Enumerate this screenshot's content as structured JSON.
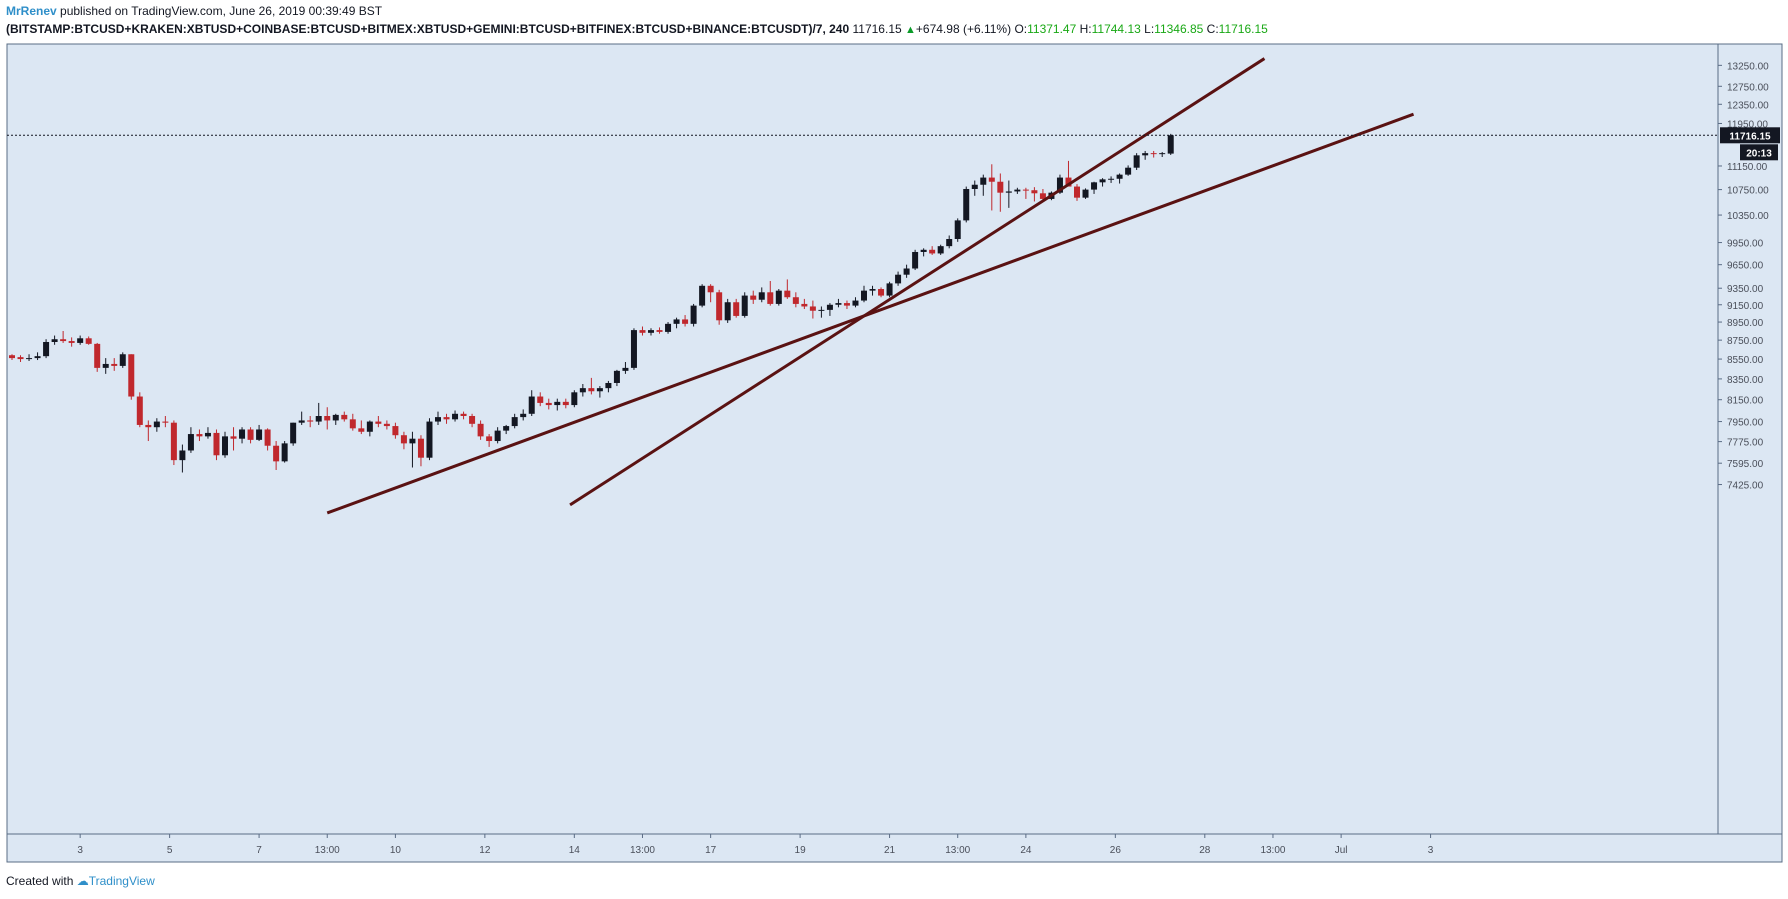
{
  "header": {
    "author": "MrRenev",
    "published_text": "published on TradingView.com, June 26, 2019 00:39:49 BST",
    "symbol": "(BITSTAMP:BTCUSD+KRAKEN:XBTUSD+COINBASE:BTCUSD+BITMEX:XBTUSD+GEMINI:BTCUSD+BITFINEX:BTCUSD+BINANCE:BTCUSDT)/7, 240",
    "last": "11716.15",
    "change": "+674.98 (+6.11%)",
    "o_label": "O:",
    "o": "11371.47",
    "h_label": "H:",
    "h": "11744.13",
    "l_label": "L:",
    "l": "11346.85",
    "c_label": "C:",
    "c": "11716.15"
  },
  "footer": {
    "created_text": "Created with",
    "brand": "TradingView"
  },
  "colors": {
    "background": "#dce7f3",
    "up": "#131722",
    "down": "#c0282d",
    "trendline": "#5a1212"
  },
  "chart_data": {
    "type": "candlestick",
    "y_ticks": [
      "13250.00",
      "12750.00",
      "12350.00",
      "11950.00",
      "11150.00",
      "10750.00",
      "10350.00",
      "9950.00",
      "9650.00",
      "9350.00",
      "9150.00",
      "8950.00",
      "8750.00",
      "8550.00",
      "8350.00",
      "8150.00",
      "7950.00",
      "7775.00",
      "7595.00",
      "7425.00"
    ],
    "x_ticks": [
      "3",
      "5",
      "7",
      "13:00",
      "10",
      "12",
      "14",
      "13:00",
      "17",
      "19",
      "21",
      "13:00",
      "24",
      "26",
      "28",
      "13:00",
      "Jul",
      "3"
    ],
    "last_price_label": "11716.15",
    "countdown_label": "20:13",
    "candles": [
      [
        8590,
        8600,
        8540,
        8560
      ],
      [
        8570,
        8590,
        8520,
        8550
      ],
      [
        8550,
        8600,
        8530,
        8560
      ],
      [
        8560,
        8620,
        8540,
        8580
      ],
      [
        8580,
        8760,
        8560,
        8730
      ],
      [
        8730,
        8800,
        8700,
        8760
      ],
      [
        8760,
        8850,
        8720,
        8740
      ],
      [
        8740,
        8780,
        8680,
        8720
      ],
      [
        8720,
        8800,
        8700,
        8770
      ],
      [
        8770,
        8790,
        8700,
        8710
      ],
      [
        8710,
        8720,
        8420,
        8460
      ],
      [
        8460,
        8560,
        8400,
        8500
      ],
      [
        8500,
        8560,
        8430,
        8480
      ],
      [
        8480,
        8620,
        8460,
        8600
      ],
      [
        8600,
        8600,
        8150,
        8180
      ],
      [
        8180,
        8220,
        7900,
        7920
      ],
      [
        7920,
        7960,
        7780,
        7900
      ],
      [
        7900,
        7980,
        7860,
        7950
      ],
      [
        7950,
        8000,
        7900,
        7940
      ],
      [
        7940,
        7960,
        7580,
        7620
      ],
      [
        7620,
        7750,
        7520,
        7700
      ],
      [
        7700,
        7900,
        7680,
        7840
      ],
      [
        7840,
        7880,
        7780,
        7820
      ],
      [
        7820,
        7900,
        7800,
        7850
      ],
      [
        7850,
        7880,
        7620,
        7660
      ],
      [
        7660,
        7860,
        7640,
        7820
      ],
      [
        7820,
        7900,
        7700,
        7800
      ],
      [
        7800,
        7900,
        7760,
        7880
      ],
      [
        7880,
        7900,
        7760,
        7790
      ],
      [
        7790,
        7920,
        7780,
        7880
      ],
      [
        7880,
        7890,
        7700,
        7740
      ],
      [
        7740,
        7780,
        7540,
        7610
      ],
      [
        7610,
        7780,
        7600,
        7760
      ],
      [
        7760,
        7940,
        7740,
        7940
      ],
      [
        7940,
        8040,
        7920,
        7960
      ],
      [
        7960,
        8000,
        7900,
        7950
      ],
      [
        7950,
        8120,
        7920,
        8000
      ],
      [
        8000,
        8080,
        7880,
        7960
      ],
      [
        7960,
        8020,
        7920,
        8010
      ],
      [
        8010,
        8040,
        7950,
        7970
      ],
      [
        7970,
        8020,
        7870,
        7890
      ],
      [
        7890,
        7960,
        7840,
        7860
      ],
      [
        7860,
        7960,
        7820,
        7950
      ],
      [
        7950,
        8000,
        7900,
        7930
      ],
      [
        7930,
        7960,
        7880,
        7910
      ],
      [
        7910,
        7940,
        7800,
        7830
      ],
      [
        7830,
        7860,
        7710,
        7760
      ],
      [
        7760,
        7860,
        7560,
        7800
      ],
      [
        7800,
        7830,
        7570,
        7640
      ],
      [
        7640,
        7980,
        7620,
        7950
      ],
      [
        7950,
        8040,
        7920,
        7990
      ],
      [
        7990,
        8020,
        7930,
        7970
      ],
      [
        7970,
        8050,
        7950,
        8020
      ],
      [
        8020,
        8040,
        7970,
        8000
      ],
      [
        8000,
        8020,
        7900,
        7930
      ],
      [
        7930,
        7960,
        7790,
        7820
      ],
      [
        7820,
        7840,
        7730,
        7780
      ],
      [
        7780,
        7900,
        7760,
        7870
      ],
      [
        7870,
        7920,
        7840,
        7910
      ],
      [
        7910,
        8020,
        7890,
        7990
      ],
      [
        7990,
        8060,
        7960,
        8020
      ],
      [
        8020,
        8240,
        8000,
        8180
      ],
      [
        8180,
        8220,
        8090,
        8120
      ],
      [
        8120,
        8160,
        8060,
        8100
      ],
      [
        8100,
        8160,
        8050,
        8130
      ],
      [
        8130,
        8160,
        8070,
        8100
      ],
      [
        8100,
        8240,
        8080,
        8220
      ],
      [
        8220,
        8300,
        8180,
        8260
      ],
      [
        8260,
        8360,
        8200,
        8230
      ],
      [
        8230,
        8280,
        8170,
        8260
      ],
      [
        8260,
        8330,
        8220,
        8310
      ],
      [
        8310,
        8440,
        8280,
        8430
      ],
      [
        8430,
        8520,
        8400,
        8460
      ],
      [
        8460,
        8880,
        8440,
        8860
      ],
      [
        8860,
        8900,
        8800,
        8830
      ],
      [
        8830,
        8880,
        8800,
        8860
      ],
      [
        8860,
        8890,
        8820,
        8840
      ],
      [
        8840,
        8950,
        8820,
        8930
      ],
      [
        8930,
        9000,
        8880,
        8980
      ],
      [
        8980,
        9030,
        8900,
        8930
      ],
      [
        8930,
        9160,
        8900,
        9140
      ],
      [
        9140,
        9400,
        9120,
        9380
      ],
      [
        9380,
        9400,
        9180,
        9300
      ],
      [
        9300,
        9330,
        8920,
        8970
      ],
      [
        8970,
        9220,
        8940,
        9180
      ],
      [
        9180,
        9220,
        9000,
        9020
      ],
      [
        9020,
        9300,
        9000,
        9260
      ],
      [
        9260,
        9320,
        9160,
        9210
      ],
      [
        9210,
        9360,
        9180,
        9300
      ],
      [
        9300,
        9440,
        9140,
        9160
      ],
      [
        9160,
        9340,
        9140,
        9320
      ],
      [
        9320,
        9460,
        9220,
        9240
      ],
      [
        9240,
        9300,
        9120,
        9160
      ],
      [
        9160,
        9220,
        9100,
        9130
      ],
      [
        9130,
        9200,
        8990,
        9080
      ],
      [
        9080,
        9130,
        9000,
        9090
      ],
      [
        9090,
        9170,
        9020,
        9150
      ],
      [
        9150,
        9220,
        9120,
        9170
      ],
      [
        9170,
        9200,
        9100,
        9140
      ],
      [
        9140,
        9240,
        9120,
        9200
      ],
      [
        9200,
        9380,
        9180,
        9320
      ],
      [
        9320,
        9380,
        9260,
        9340
      ],
      [
        9340,
        9360,
        9240,
        9260
      ],
      [
        9260,
        9430,
        9240,
        9410
      ],
      [
        9410,
        9560,
        9380,
        9520
      ],
      [
        9520,
        9650,
        9480,
        9600
      ],
      [
        9600,
        9850,
        9580,
        9820
      ],
      [
        9820,
        9870,
        9760,
        9850
      ],
      [
        9850,
        9900,
        9780,
        9800
      ],
      [
        9800,
        9920,
        9780,
        9900
      ],
      [
        9900,
        10050,
        9870,
        10000
      ],
      [
        10000,
        10300,
        9960,
        10270
      ],
      [
        10270,
        10800,
        10240,
        10760
      ],
      [
        10760,
        10900,
        10650,
        10830
      ],
      [
        10830,
        11000,
        10650,
        10950
      ],
      [
        10950,
        11180,
        10420,
        10880
      ],
      [
        10880,
        11020,
        10400,
        10700
      ],
      [
        10700,
        10900,
        10460,
        10720
      ],
      [
        10720,
        10780,
        10680,
        10750
      ],
      [
        10750,
        10780,
        10600,
        10740
      ],
      [
        10740,
        10790,
        10560,
        10690
      ],
      [
        10690,
        10760,
        10580,
        10600
      ],
      [
        10600,
        10720,
        10580,
        10700
      ],
      [
        10700,
        11000,
        10680,
        10950
      ],
      [
        10950,
        11240,
        10820,
        10800
      ],
      [
        10800,
        10840,
        10570,
        10620
      ],
      [
        10620,
        10770,
        10600,
        10750
      ],
      [
        10750,
        10880,
        10680,
        10870
      ],
      [
        10870,
        10940,
        10800,
        10920
      ],
      [
        10920,
        10970,
        10860,
        10930
      ],
      [
        10930,
        11020,
        10850,
        11000
      ],
      [
        11000,
        11160,
        10980,
        11120
      ],
      [
        11120,
        11380,
        11080,
        11340
      ],
      [
        11340,
        11420,
        11260,
        11380
      ],
      [
        11380,
        11420,
        11300,
        11370
      ],
      [
        11370,
        11400,
        11310,
        11380
      ],
      [
        11371.47,
        11744.13,
        11346.85,
        11716.15
      ]
    ],
    "trendlines": [
      {
        "from": {
          "candle": 37,
          "price": 7210
        },
        "to": {
          "candle": 164.5,
          "price": 12140
        }
      },
      {
        "from": {
          "candle": 65.5,
          "price": 7270
        },
        "to": {
          "candle": 147,
          "price": 13420
        }
      }
    ]
  }
}
